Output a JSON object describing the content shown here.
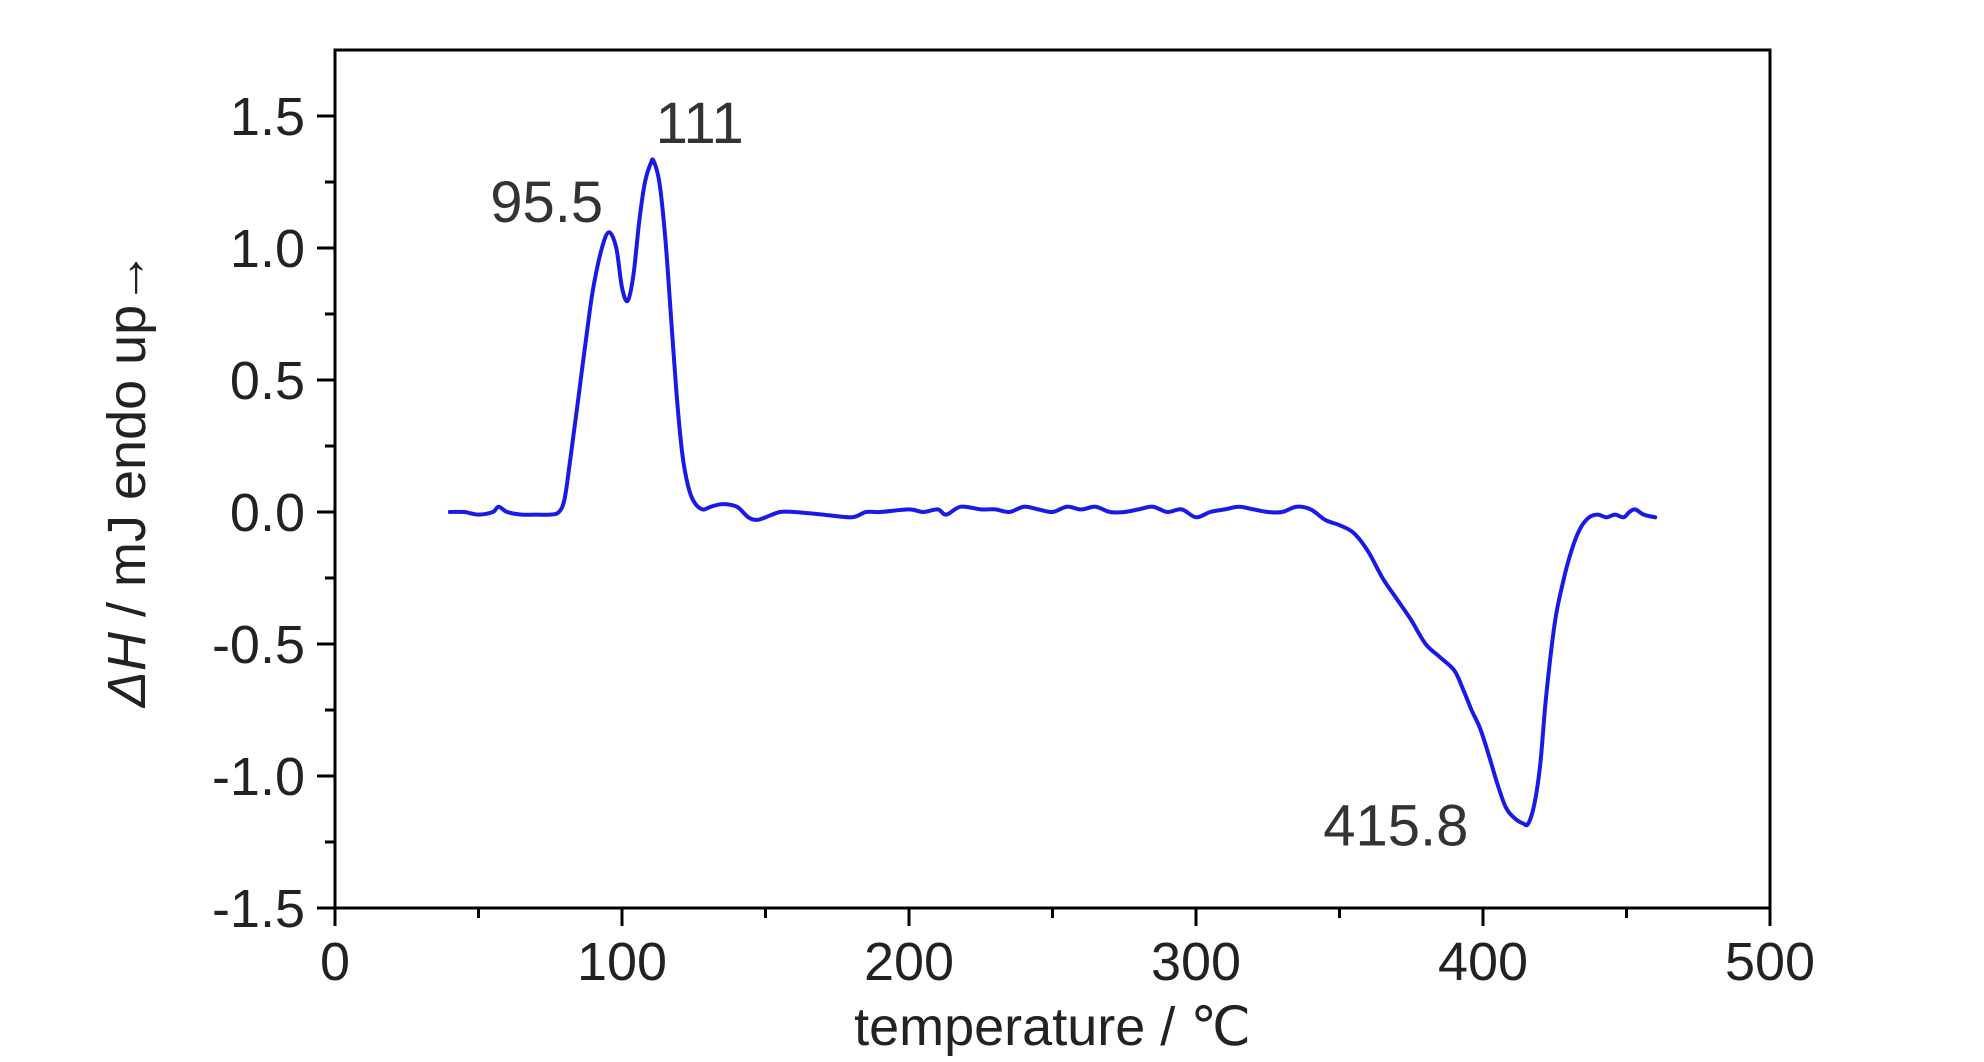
{
  "chart_data": {
    "type": "line",
    "title": "",
    "xlabel": "temperature / ℃",
    "ylabel_parts": {
      "symbol": "ΔH",
      "rest": " / mJ  endo up→"
    },
    "xlim": [
      0,
      500
    ],
    "ylim": [
      -1.5,
      1.75
    ],
    "xticks": [
      0,
      100,
      200,
      300,
      400,
      500
    ],
    "xtick_labels": [
      "0",
      "100",
      "200",
      "300",
      "400",
      "500"
    ],
    "yticks": [
      -1.5,
      -1.0,
      -0.5,
      0.0,
      0.5,
      1.0,
      1.5
    ],
    "ytick_labels": [
      "-1.5",
      "-1.0",
      "-0.5",
      "0.0",
      "0.5",
      "1.0",
      "1.5"
    ],
    "grid": false,
    "line_color": "#1a1ae6",
    "series": [
      {
        "x": [
          40,
          45,
          50,
          55,
          57,
          60,
          65,
          70,
          75,
          78,
          80,
          82,
          85,
          88,
          90,
          93,
          95.5,
          98,
          100,
          102,
          104,
          106,
          108,
          110,
          111,
          113,
          115,
          117,
          119,
          121,
          123,
          125,
          128,
          131,
          135,
          140,
          144,
          147,
          150,
          155,
          160,
          170,
          180,
          185,
          190,
          200,
          205,
          210,
          213,
          218,
          225,
          230,
          235,
          240,
          245,
          250,
          255,
          260,
          265,
          270,
          275,
          280,
          285,
          290,
          295,
          300,
          305,
          310,
          315,
          320,
          325,
          330,
          335,
          340,
          345,
          350,
          355,
          360,
          365,
          370,
          375,
          380,
          385,
          390,
          393,
          396,
          399,
          402,
          405,
          408,
          411,
          414,
          415.8,
          418,
          420,
          422,
          425,
          428,
          431,
          434,
          437,
          440,
          443,
          446,
          449,
          451,
          453,
          456,
          460
        ],
        "y": [
          0.0,
          0.0,
          -0.01,
          0.0,
          0.02,
          0.0,
          -0.01,
          -0.01,
          -0.01,
          0.0,
          0.05,
          0.2,
          0.45,
          0.7,
          0.85,
          1.0,
          1.06,
          1.0,
          0.85,
          0.8,
          0.9,
          1.1,
          1.25,
          1.32,
          1.33,
          1.25,
          1.05,
          0.75,
          0.45,
          0.22,
          0.1,
          0.04,
          0.01,
          0.02,
          0.03,
          0.02,
          -0.02,
          -0.03,
          -0.02,
          0.0,
          0.0,
          -0.01,
          -0.02,
          0.0,
          0.0,
          0.01,
          0.0,
          0.01,
          -0.01,
          0.02,
          0.01,
          0.01,
          0.0,
          0.02,
          0.01,
          0.0,
          0.02,
          0.01,
          0.02,
          0.0,
          0.0,
          0.01,
          0.02,
          0.0,
          0.01,
          -0.02,
          0.0,
          0.01,
          0.02,
          0.01,
          0.0,
          0.0,
          0.02,
          0.01,
          -0.03,
          -0.05,
          -0.08,
          -0.15,
          -0.25,
          -0.33,
          -0.41,
          -0.5,
          -0.55,
          -0.6,
          -0.67,
          -0.75,
          -0.82,
          -0.92,
          -1.03,
          -1.12,
          -1.16,
          -1.18,
          -1.18,
          -1.1,
          -0.95,
          -0.7,
          -0.42,
          -0.26,
          -0.14,
          -0.06,
          -0.02,
          -0.01,
          -0.02,
          -0.01,
          -0.02,
          0.0,
          0.01,
          -0.01,
          -0.02
        ]
      }
    ],
    "annotations": [
      {
        "text": "95.5",
        "x": 95.5,
        "y": 1.06
      },
      {
        "text": "111",
        "x": 111,
        "y": 1.33
      },
      {
        "text": "415.8",
        "x": 415.8,
        "y": -1.18
      }
    ]
  }
}
